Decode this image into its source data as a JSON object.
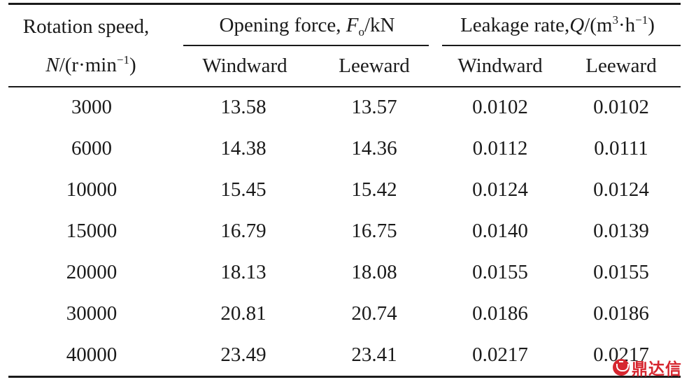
{
  "table": {
    "header": {
      "rotation_line1": "Rotation speed,",
      "rotation_sym": "N",
      "rotation_unit_pre": "/(r·min",
      "rotation_unit_exp": "−1",
      "rotation_unit_post": ")",
      "opening_pre": "Opening force, ",
      "opening_sym": "F",
      "opening_sub": "o",
      "opening_post": "/kN",
      "leak_pre": "Leakage rate,",
      "leak_sym": "Q",
      "leak_unit_pre": "/(m",
      "leak_unit_exp1": "3",
      "leak_unit_mid": "·h",
      "leak_unit_exp2": "−1",
      "leak_unit_post": ")",
      "windward": "Windward",
      "leeward": "Leeward"
    },
    "rows": [
      {
        "speed": "3000",
        "f_wind": "13.58",
        "f_lee": "13.57",
        "q_wind": "0.0102",
        "q_lee": "0.0102"
      },
      {
        "speed": "6000",
        "f_wind": "14.38",
        "f_lee": "14.36",
        "q_wind": "0.0112",
        "q_lee": "0.0111"
      },
      {
        "speed": "10000",
        "f_wind": "15.45",
        "f_lee": "15.42",
        "q_wind": "0.0124",
        "q_lee": "0.0124"
      },
      {
        "speed": "15000",
        "f_wind": "16.79",
        "f_lee": "16.75",
        "q_wind": "0.0140",
        "q_lee": "0.0139"
      },
      {
        "speed": "20000",
        "f_wind": "18.13",
        "f_lee": "18.08",
        "q_wind": "0.0155",
        "q_lee": "0.0155"
      },
      {
        "speed": "30000",
        "f_wind": "20.81",
        "f_lee": "20.74",
        "q_wind": "0.0186",
        "q_lee": "0.0186"
      },
      {
        "speed": "40000",
        "f_wind": "23.49",
        "f_lee": "23.41",
        "q_wind": "0.0217",
        "q_lee": "0.0217"
      }
    ]
  },
  "watermark": {
    "text": "鼎达信",
    "color": "#d6262f"
  }
}
